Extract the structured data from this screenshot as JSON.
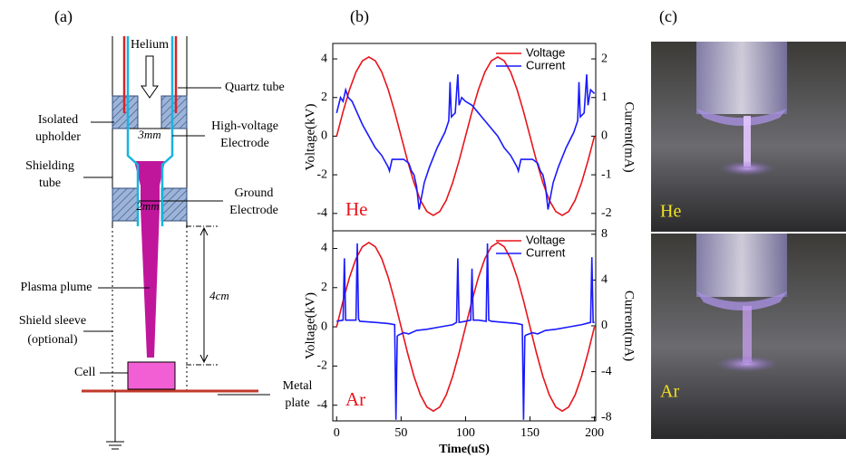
{
  "panel_labels": [
    "(a)",
    "(b)",
    "(c)"
  ],
  "diagram": {
    "helium": "Helium",
    "quartz_tube": "Quartz tube",
    "isolated_upholder": [
      "Isolated",
      "upholder"
    ],
    "high_voltage_electrode": [
      "High-voltage",
      "Electrode"
    ],
    "gap_top": "3mm",
    "shielding_tube": [
      "Shielding",
      "tube"
    ],
    "ground_electrode": [
      "Ground",
      "Electrode"
    ],
    "gap_bottom": "2mm",
    "plasma_plume": "Plasma plume",
    "distance": "4cm",
    "shield_sleeve": [
      "Shield sleeve",
      "(optional)"
    ],
    "cell": "Cell",
    "metal_plate": [
      "Metal",
      "plate"
    ]
  },
  "photos": {
    "labels": [
      "He",
      "Ar"
    ]
  },
  "chart_data": [
    {
      "type": "line",
      "annotation": "He",
      "y_label": "Voltage(kV)",
      "y2_label": "Current(mA)",
      "xlim": [
        -3,
        201
      ],
      "ylim": [
        -4.9,
        4.8
      ],
      "yticks": [
        -4,
        -2,
        0,
        2,
        4
      ],
      "y2lim": [
        -2.45,
        2.4
      ],
      "y2ticks": [
        -2,
        -1,
        0,
        1,
        2
      ],
      "legend": "upper right",
      "series": [
        {
          "name": "Voltage",
          "color": "#e8141b",
          "x": [
            0,
            5,
            10,
            15,
            20,
            25,
            30,
            35,
            40,
            45,
            50,
            55,
            60,
            65,
            70,
            75,
            80,
            85,
            90,
            95,
            100,
            105,
            110,
            115,
            120,
            125,
            130,
            135,
            140,
            145,
            150,
            155,
            160,
            165,
            170,
            175,
            180,
            185,
            190,
            195,
            200
          ],
          "values": [
            0,
            1.27,
            2.41,
            3.32,
            3.9,
            4.1,
            3.9,
            3.32,
            2.41,
            1.27,
            0,
            -1.27,
            -2.41,
            -3.32,
            -3.9,
            -4.1,
            -3.9,
            -3.32,
            -2.41,
            -1.27,
            0,
            1.27,
            2.41,
            3.32,
            3.9,
            4.1,
            3.9,
            3.32,
            2.41,
            1.27,
            0,
            -1.27,
            -2.41,
            -3.32,
            -3.9,
            -4.1,
            -3.9,
            -3.32,
            -2.41,
            -1.27,
            0
          ]
        },
        {
          "name": "Current",
          "color": "#1a1aff",
          "axis": "y2",
          "x": [
            0,
            3,
            5,
            7,
            9,
            12,
            16,
            20,
            25,
            30,
            35,
            40,
            41,
            43,
            47,
            52,
            56,
            58,
            60,
            62,
            64,
            68,
            72,
            78,
            84,
            87,
            88,
            89,
            92,
            94,
            95,
            97,
            100,
            105,
            110,
            115,
            120,
            125,
            130,
            135,
            140,
            141,
            143,
            147,
            152,
            156,
            158,
            160,
            162,
            164,
            168,
            172,
            178,
            184,
            187,
            188,
            189,
            192,
            194,
            195,
            197,
            200
          ],
          "values": [
            0.6,
            1.0,
            0.9,
            1.2,
            1.0,
            0.9,
            0.6,
            0.3,
            0.0,
            -0.3,
            -0.5,
            -0.8,
            -0.9,
            -0.6,
            -0.6,
            -0.6,
            -0.7,
            -0.9,
            -1.0,
            -1.3,
            -1.9,
            -1.2,
            -0.8,
            -0.3,
            0.1,
            0.4,
            1.4,
            0.5,
            0.6,
            1.6,
            0.8,
            1.0,
            0.9,
            0.8,
            0.6,
            0.4,
            0.2,
            0.0,
            -0.3,
            -0.5,
            -0.8,
            -0.9,
            -0.6,
            -0.6,
            -0.6,
            -0.7,
            -0.9,
            -1.0,
            -1.3,
            -1.9,
            -1.2,
            -0.8,
            -0.3,
            0.1,
            0.4,
            1.4,
            0.5,
            0.6,
            1.6,
            0.8,
            1.2,
            1.1
          ]
        }
      ]
    },
    {
      "type": "line",
      "annotation": "Ar",
      "x_label": "Time(uS)",
      "y_label": "Voltage(kV)",
      "y2_label": "Current(mA)",
      "xlim": [
        -3,
        201
      ],
      "xticks": [
        0,
        50,
        100,
        150,
        200
      ],
      "ylim": [
        -4.8,
        4.9
      ],
      "yticks": [
        -4,
        -2,
        0,
        2,
        4
      ],
      "y2lim": [
        -8.3,
        8.3
      ],
      "y2ticks": [
        -8,
        -4,
        0,
        4,
        8
      ],
      "legend": "upper right",
      "series": [
        {
          "name": "Voltage",
          "color": "#e8141b",
          "x": [
            0,
            5,
            10,
            15,
            20,
            25,
            30,
            35,
            40,
            45,
            50,
            55,
            60,
            65,
            70,
            75,
            80,
            85,
            90,
            95,
            100,
            105,
            110,
            115,
            120,
            125,
            130,
            135,
            140,
            145,
            150,
            155,
            160,
            165,
            170,
            175,
            180,
            185,
            190,
            195,
            200
          ],
          "values": [
            0,
            1.33,
            2.53,
            3.48,
            4.09,
            4.3,
            4.09,
            3.48,
            2.53,
            1.33,
            0,
            -1.33,
            -2.53,
            -3.48,
            -4.09,
            -4.3,
            -4.09,
            -3.48,
            -2.53,
            -1.33,
            0,
            1.33,
            2.53,
            3.48,
            4.09,
            4.3,
            4.09,
            3.48,
            2.53,
            1.33,
            0,
            -1.33,
            -2.53,
            -3.48,
            -4.09,
            -4.3,
            -4.09,
            -3.48,
            -2.53,
            -1.33,
            0
          ]
        },
        {
          "name": "Current",
          "color": "#1a1aff",
          "axis": "y2",
          "x": [
            0,
            5,
            6,
            7,
            8,
            15,
            16,
            17,
            18,
            30,
            40,
            45,
            46,
            47,
            48,
            52,
            56,
            62,
            70,
            80,
            90,
            93,
            94,
            95,
            100,
            104,
            105,
            106,
            110,
            116,
            117,
            118,
            120,
            130,
            140,
            144,
            145,
            146,
            147,
            152,
            156,
            162,
            170,
            180,
            190,
            197,
            198,
            199,
            200
          ],
          "values": [
            0.4,
            0.5,
            5.9,
            0.5,
            0.5,
            0.5,
            7.2,
            0.6,
            0.4,
            0.3,
            0.2,
            0.1,
            -8.2,
            -0.9,
            -0.8,
            -0.6,
            -0.7,
            -0.4,
            -0.3,
            -0.1,
            0.1,
            0.3,
            5.9,
            0.3,
            0.4,
            0.5,
            5.0,
            0.5,
            0.5,
            0.4,
            7.2,
            0.5,
            0.4,
            0.3,
            0.2,
            0.1,
            -8.2,
            -0.9,
            -0.8,
            -0.6,
            -0.7,
            -0.4,
            -0.3,
            -0.1,
            0.1,
            0.3,
            6.0,
            0.3,
            0.3
          ]
        }
      ]
    }
  ]
}
